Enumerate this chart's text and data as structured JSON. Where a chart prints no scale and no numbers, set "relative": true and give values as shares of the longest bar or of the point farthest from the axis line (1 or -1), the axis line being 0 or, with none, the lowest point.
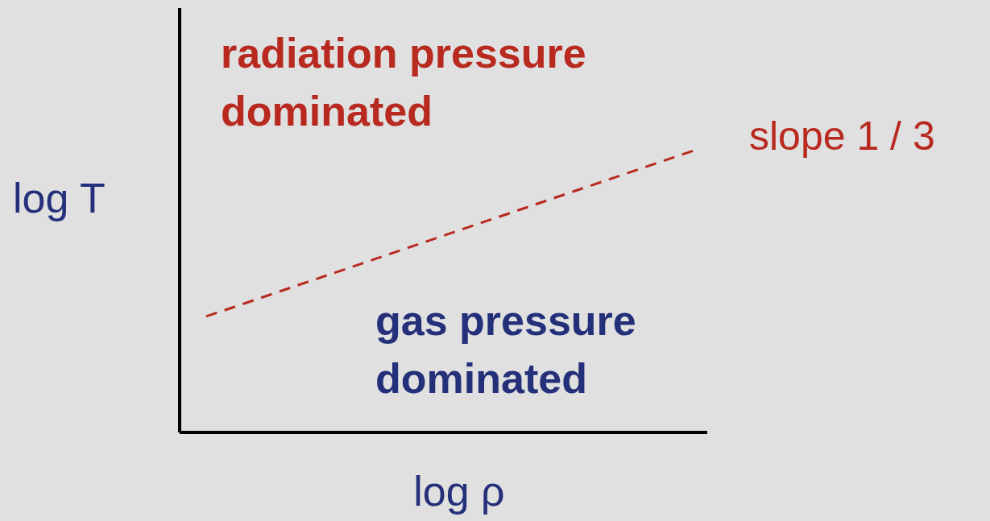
{
  "chart_data": {
    "type": "line",
    "relative": true,
    "xlabel": "log ρ",
    "ylabel": "log T",
    "categories": [
      null,
      null
    ],
    "series": [
      {
        "color": "#b8291f",
        "values": [
          0.41,
          1
        ]
      }
    ],
    "ref_lines": [
      {
        "axis": "y",
        "value": 0,
        "color": "#000000",
        "line_style": "solid"
      }
    ],
    "line_style": "dashed",
    "marker": "none",
    "annotations": [
      "radiation pressure dominated",
      "gas pressure dominated",
      "slope 1 / 3"
    ]
  }
}
